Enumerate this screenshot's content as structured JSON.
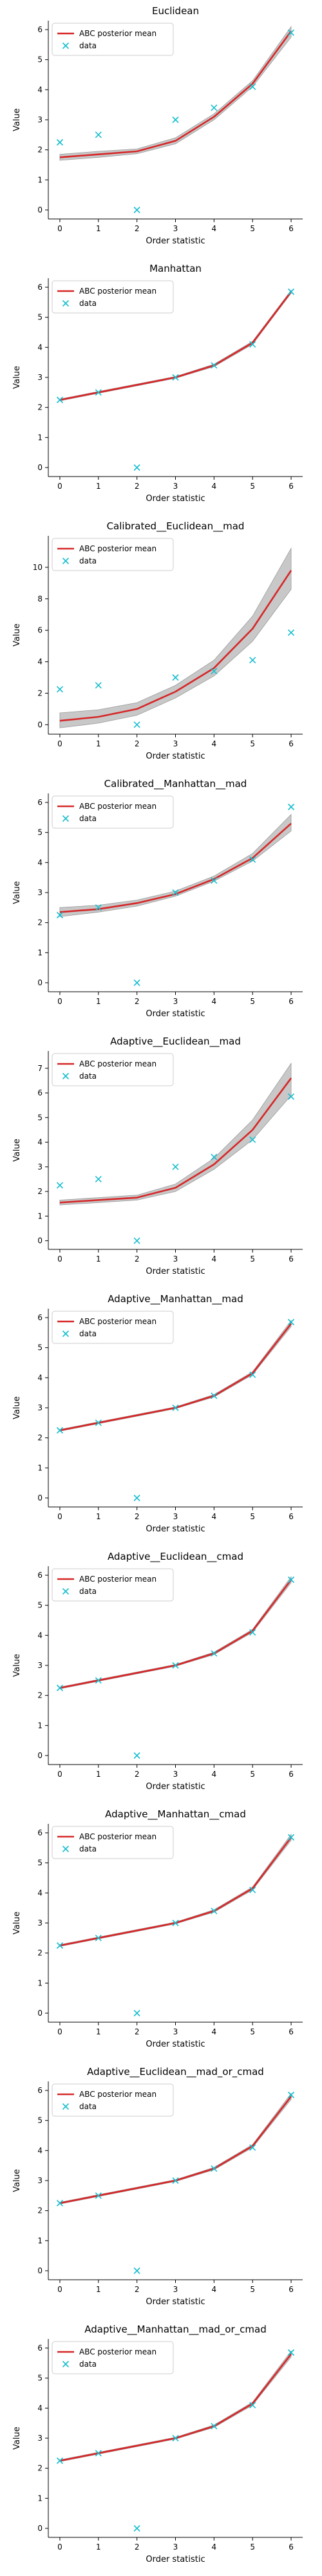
{
  "figure": {
    "ylabel": "Value",
    "xlabel": "Order statistic"
  },
  "legend": {
    "mean_label": "ABC posterior mean",
    "data_label": "data"
  },
  "colors": {
    "mean": "#d62728",
    "band": "#9a9a9a",
    "data": "#17becf",
    "axis": "#000000"
  },
  "chart_data": [
    {
      "type": "line",
      "title": "Euclidean",
      "xlabel": "Order statistic",
      "ylabel": "Value",
      "x": [
        0,
        1,
        2,
        3,
        4,
        5,
        6
      ],
      "xlim": [
        -0.3,
        6.3
      ],
      "ylim": [
        -0.3,
        6.3
      ],
      "yticks": [
        0,
        1,
        2,
        3,
        4,
        5,
        6
      ],
      "grid": false,
      "legend": "top-left",
      "series": [
        {
          "name": "ABC posterior mean",
          "kind": "line",
          "values": [
            1.75,
            1.85,
            1.95,
            2.3,
            3.1,
            4.2,
            5.95
          ],
          "band_low": [
            1.65,
            1.75,
            1.87,
            2.2,
            3.0,
            4.1,
            5.75
          ],
          "band_high": [
            1.85,
            1.95,
            2.03,
            2.4,
            3.2,
            4.3,
            6.1
          ]
        },
        {
          "name": "data",
          "kind": "scatter",
          "values": [
            2.25,
            2.5,
            0.0,
            3.0,
            3.4,
            4.1,
            5.9
          ]
        }
      ]
    },
    {
      "type": "line",
      "title": "Manhattan",
      "xlabel": "Order statistic",
      "ylabel": "Value",
      "x": [
        0,
        1,
        2,
        3,
        4,
        5,
        6
      ],
      "xlim": [
        -0.3,
        6.3
      ],
      "ylim": [
        -0.3,
        6.3
      ],
      "yticks": [
        0,
        1,
        2,
        3,
        4,
        5,
        6
      ],
      "grid": false,
      "legend": "top-left",
      "series": [
        {
          "name": "ABC posterior mean",
          "kind": "line",
          "values": [
            2.25,
            2.5,
            2.75,
            3.0,
            3.4,
            4.15,
            5.85
          ],
          "band_low": [
            2.22,
            2.47,
            2.72,
            2.97,
            3.36,
            4.1,
            5.8
          ],
          "band_high": [
            2.28,
            2.53,
            2.78,
            3.03,
            3.44,
            4.2,
            5.9
          ]
        },
        {
          "name": "data",
          "kind": "scatter",
          "values": [
            2.25,
            2.5,
            0.0,
            3.0,
            3.4,
            4.1,
            5.85
          ]
        }
      ]
    },
    {
      "type": "line",
      "title": "Calibrated__Euclidean__mad",
      "xlabel": "Order statistic",
      "ylabel": "Value",
      "x": [
        0,
        1,
        2,
        3,
        4,
        5,
        6
      ],
      "xlim": [
        -0.3,
        6.3
      ],
      "ylim": [
        -0.6,
        12.0
      ],
      "yticks": [
        0,
        2,
        4,
        6,
        8,
        10
      ],
      "grid": false,
      "legend": "top-left",
      "series": [
        {
          "name": "ABC posterior mean",
          "kind": "line",
          "values": [
            0.25,
            0.5,
            1.0,
            2.1,
            3.6,
            6.1,
            9.8
          ],
          "band_low": [
            -0.2,
            0.1,
            0.6,
            1.7,
            3.1,
            5.3,
            8.6
          ],
          "band_high": [
            0.75,
            0.95,
            1.4,
            2.5,
            4.1,
            6.9,
            11.2
          ]
        },
        {
          "name": "data",
          "kind": "scatter",
          "values": [
            2.25,
            2.5,
            0.0,
            3.0,
            3.4,
            4.1,
            5.85
          ]
        }
      ]
    },
    {
      "type": "line",
      "title": "Calibrated__Manhattan__mad",
      "xlabel": "Order statistic",
      "ylabel": "Value",
      "x": [
        0,
        1,
        2,
        3,
        4,
        5,
        6
      ],
      "xlim": [
        -0.3,
        6.3
      ],
      "ylim": [
        -0.3,
        6.3
      ],
      "yticks": [
        0,
        1,
        2,
        3,
        4,
        5,
        6
      ],
      "grid": false,
      "legend": "top-left",
      "series": [
        {
          "name": "ABC posterior mean",
          "kind": "line",
          "values": [
            2.35,
            2.45,
            2.65,
            2.95,
            3.45,
            4.15,
            5.3
          ],
          "band_low": [
            2.2,
            2.35,
            2.55,
            2.88,
            3.38,
            4.05,
            5.05
          ],
          "band_high": [
            2.5,
            2.58,
            2.75,
            3.05,
            3.55,
            4.3,
            5.6
          ]
        },
        {
          "name": "data",
          "kind": "scatter",
          "values": [
            2.25,
            2.5,
            0.0,
            3.0,
            3.4,
            4.1,
            5.85
          ]
        }
      ]
    },
    {
      "type": "line",
      "title": "Adaptive__Euclidean__mad",
      "xlabel": "Order statistic",
      "ylabel": "Value",
      "x": [
        0,
        1,
        2,
        3,
        4,
        5,
        6
      ],
      "xlim": [
        -0.3,
        6.3
      ],
      "ylim": [
        -0.35,
        7.7
      ],
      "yticks": [
        0,
        1,
        2,
        3,
        4,
        5,
        6,
        7
      ],
      "grid": false,
      "legend": "top-left",
      "series": [
        {
          "name": "ABC posterior mean",
          "kind": "line",
          "values": [
            1.55,
            1.65,
            1.75,
            2.15,
            3.1,
            4.5,
            6.6
          ],
          "band_low": [
            1.45,
            1.55,
            1.65,
            2.0,
            2.9,
            4.1,
            5.9
          ],
          "band_high": [
            1.65,
            1.75,
            1.85,
            2.3,
            3.35,
            4.9,
            7.2
          ]
        },
        {
          "name": "data",
          "kind": "scatter",
          "values": [
            2.25,
            2.5,
            0.0,
            3.0,
            3.4,
            4.1,
            5.85
          ]
        }
      ]
    },
    {
      "type": "line",
      "title": "Adaptive__Manhattan__mad",
      "xlabel": "Order statistic",
      "ylabel": "Value",
      "x": [
        0,
        1,
        2,
        3,
        4,
        5,
        6
      ],
      "xlim": [
        -0.3,
        6.3
      ],
      "ylim": [
        -0.3,
        6.3
      ],
      "yticks": [
        0,
        1,
        2,
        3,
        4,
        5,
        6
      ],
      "grid": false,
      "legend": "top-left",
      "series": [
        {
          "name": "ABC posterior mean",
          "kind": "line",
          "values": [
            2.25,
            2.5,
            2.75,
            3.0,
            3.4,
            4.15,
            5.8
          ],
          "band_low": [
            2.22,
            2.47,
            2.72,
            2.97,
            3.36,
            4.1,
            5.7
          ],
          "band_high": [
            2.28,
            2.53,
            2.78,
            3.03,
            3.44,
            4.2,
            5.9
          ]
        },
        {
          "name": "data",
          "kind": "scatter",
          "values": [
            2.25,
            2.5,
            0.0,
            3.0,
            3.4,
            4.1,
            5.85
          ]
        }
      ]
    },
    {
      "type": "line",
      "title": "Adaptive__Euclidean__cmad",
      "xlabel": "Order statistic",
      "ylabel": "Value",
      "x": [
        0,
        1,
        2,
        3,
        4,
        5,
        6
      ],
      "xlim": [
        -0.3,
        6.3
      ],
      "ylim": [
        -0.3,
        6.3
      ],
      "yticks": [
        0,
        1,
        2,
        3,
        4,
        5,
        6
      ],
      "grid": false,
      "legend": "top-left",
      "series": [
        {
          "name": "ABC posterior mean",
          "kind": "line",
          "values": [
            2.25,
            2.5,
            2.75,
            3.0,
            3.4,
            4.15,
            5.85
          ],
          "band_low": [
            2.22,
            2.47,
            2.72,
            2.97,
            3.36,
            4.1,
            5.75
          ],
          "band_high": [
            2.28,
            2.53,
            2.78,
            3.03,
            3.44,
            4.2,
            5.95
          ]
        },
        {
          "name": "data",
          "kind": "scatter",
          "values": [
            2.25,
            2.5,
            0.0,
            3.0,
            3.4,
            4.1,
            5.85
          ]
        }
      ]
    },
    {
      "type": "line",
      "title": "Adaptive__Manhattan__cmad",
      "xlabel": "Order statistic",
      "ylabel": "Value",
      "x": [
        0,
        1,
        2,
        3,
        4,
        5,
        6
      ],
      "xlim": [
        -0.3,
        6.3
      ],
      "ylim": [
        -0.3,
        6.3
      ],
      "yticks": [
        0,
        1,
        2,
        3,
        4,
        5,
        6
      ],
      "grid": false,
      "legend": "top-left",
      "series": [
        {
          "name": "ABC posterior mean",
          "kind": "line",
          "values": [
            2.25,
            2.5,
            2.75,
            3.0,
            3.4,
            4.15,
            5.85
          ],
          "band_low": [
            2.22,
            2.47,
            2.72,
            2.97,
            3.36,
            4.1,
            5.75
          ],
          "band_high": [
            2.28,
            2.53,
            2.78,
            3.03,
            3.44,
            4.2,
            5.95
          ]
        },
        {
          "name": "data",
          "kind": "scatter",
          "values": [
            2.25,
            2.5,
            0.0,
            3.0,
            3.4,
            4.1,
            5.85
          ]
        }
      ]
    },
    {
      "type": "line",
      "title": "Adaptive__Euclidean__mad_or_cmad",
      "xlabel": "Order statistic",
      "ylabel": "Value",
      "x": [
        0,
        1,
        2,
        3,
        4,
        5,
        6
      ],
      "xlim": [
        -0.3,
        6.3
      ],
      "ylim": [
        -0.3,
        6.3
      ],
      "yticks": [
        0,
        1,
        2,
        3,
        4,
        5,
        6
      ],
      "grid": false,
      "legend": "top-left",
      "series": [
        {
          "name": "ABC posterior mean",
          "kind": "line",
          "values": [
            2.25,
            2.5,
            2.75,
            3.0,
            3.4,
            4.15,
            5.8
          ],
          "band_low": [
            2.22,
            2.47,
            2.72,
            2.97,
            3.36,
            4.1,
            5.7
          ],
          "band_high": [
            2.28,
            2.53,
            2.78,
            3.03,
            3.44,
            4.2,
            5.9
          ]
        },
        {
          "name": "data",
          "kind": "scatter",
          "values": [
            2.25,
            2.5,
            0.0,
            3.0,
            3.4,
            4.1,
            5.85
          ]
        }
      ]
    },
    {
      "type": "line",
      "title": "Adaptive__Manhattan__mad_or_cmad",
      "xlabel": "Order statistic",
      "ylabel": "Value",
      "x": [
        0,
        1,
        2,
        3,
        4,
        5,
        6
      ],
      "xlim": [
        -0.3,
        6.3
      ],
      "ylim": [
        -0.3,
        6.3
      ],
      "yticks": [
        0,
        1,
        2,
        3,
        4,
        5,
        6
      ],
      "grid": false,
      "legend": "top-left",
      "series": [
        {
          "name": "ABC posterior mean",
          "kind": "line",
          "values": [
            2.25,
            2.5,
            2.75,
            3.0,
            3.4,
            4.15,
            5.8
          ],
          "band_low": [
            2.22,
            2.47,
            2.72,
            2.97,
            3.36,
            4.1,
            5.7
          ],
          "band_high": [
            2.28,
            2.53,
            2.78,
            3.03,
            3.44,
            4.2,
            5.9
          ]
        },
        {
          "name": "data",
          "kind": "scatter",
          "values": [
            2.25,
            2.5,
            0.0,
            3.0,
            3.4,
            4.1,
            5.85
          ]
        }
      ]
    }
  ]
}
